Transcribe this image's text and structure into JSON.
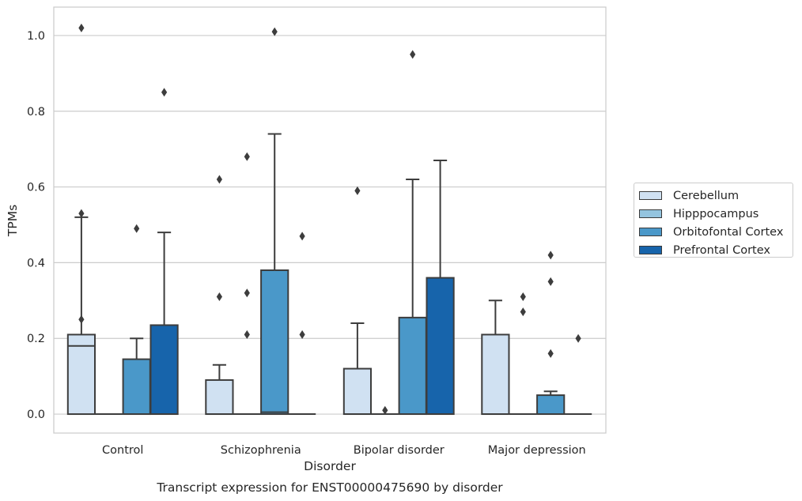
{
  "chart_data": {
    "type": "box",
    "title": "",
    "caption": "Transcript expression for ENST00000475690 by disorder",
    "xlabel": "Disorder",
    "ylabel": "TPMs",
    "ylim": [
      -0.05,
      1.075
    ],
    "yticks": [
      "0.0",
      "0.2",
      "0.4",
      "0.6",
      "0.8",
      "1.0"
    ],
    "ytick_values": [
      0,
      0.2,
      0.4,
      0.6,
      0.8,
      1.0
    ],
    "grid": "horizontal",
    "legend_position": "right",
    "categories": [
      "Control",
      "Schizophrenia",
      "Bipolar disorder",
      "Major depression"
    ],
    "series": [
      {
        "name": "Cerebellum",
        "color": "#d0e1f2",
        "boxes": [
          {
            "q1": 0,
            "median": 0.18,
            "q3": 0.21,
            "whisker_low": 0,
            "whisker_high": 0.52,
            "outliers": [
              1.02,
              0.53,
              0.25
            ]
          },
          {
            "q1": 0,
            "median": 0,
            "q3": 0.09,
            "whisker_low": 0,
            "whisker_high": 0.13,
            "outliers": [
              0.62,
              0.31
            ]
          },
          {
            "q1": 0,
            "median": 0,
            "q3": 0.12,
            "whisker_low": 0,
            "whisker_high": 0.24,
            "outliers": [
              0.59
            ]
          },
          {
            "q1": 0,
            "median": 0,
            "q3": 0.21,
            "whisker_low": 0,
            "whisker_high": 0.3,
            "outliers": []
          }
        ]
      },
      {
        "name": "Hipppocampus",
        "color": "#94c4df",
        "boxes": [
          {
            "q1": 0,
            "median": 0,
            "q3": 0,
            "whisker_low": 0,
            "whisker_high": 0,
            "outliers": []
          },
          {
            "q1": 0,
            "median": 0,
            "q3": 0,
            "whisker_low": 0,
            "whisker_high": 0,
            "outliers": [
              0.68,
              0.32,
              0.21
            ]
          },
          {
            "q1": 0,
            "median": 0,
            "q3": 0,
            "whisker_low": 0,
            "whisker_high": 0,
            "outliers": [
              0.01
            ]
          },
          {
            "q1": 0,
            "median": 0,
            "q3": 0,
            "whisker_low": 0,
            "whisker_high": 0,
            "outliers": [
              0.31,
              0.27
            ]
          }
        ]
      },
      {
        "name": "Orbitofontal Cortex",
        "color": "#4a98c9",
        "boxes": [
          {
            "q1": 0,
            "median": 0,
            "q3": 0.145,
            "whisker_low": 0,
            "whisker_high": 0.2,
            "outliers": [
              0.49
            ]
          },
          {
            "q1": 0,
            "median": 0.005,
            "q3": 0.38,
            "whisker_low": 0,
            "whisker_high": 0.74,
            "outliers": [
              1.01
            ]
          },
          {
            "q1": 0,
            "median": 0,
            "q3": 0.255,
            "whisker_low": 0,
            "whisker_high": 0.62,
            "outliers": [
              0.95
            ]
          },
          {
            "q1": 0,
            "median": 0,
            "q3": 0.05,
            "whisker_low": 0,
            "whisker_high": 0.06,
            "outliers": [
              0.42,
              0.35,
              0.16
            ]
          }
        ]
      },
      {
        "name": "Prefrontal Cortex",
        "color": "#1764ab",
        "boxes": [
          {
            "q1": 0,
            "median": 0,
            "q3": 0.235,
            "whisker_low": 0,
            "whisker_high": 0.48,
            "outliers": [
              0.85
            ]
          },
          {
            "q1": 0,
            "median": 0,
            "q3": 0,
            "whisker_low": 0,
            "whisker_high": 0,
            "outliers": [
              0.47,
              0.21
            ]
          },
          {
            "q1": 0,
            "median": 0,
            "q3": 0.36,
            "whisker_low": 0,
            "whisker_high": 0.67,
            "outliers": []
          },
          {
            "q1": 0,
            "median": 0,
            "q3": 0,
            "whisker_low": 0,
            "whisker_high": 0,
            "outliers": [
              0.2
            ]
          }
        ]
      }
    ]
  }
}
